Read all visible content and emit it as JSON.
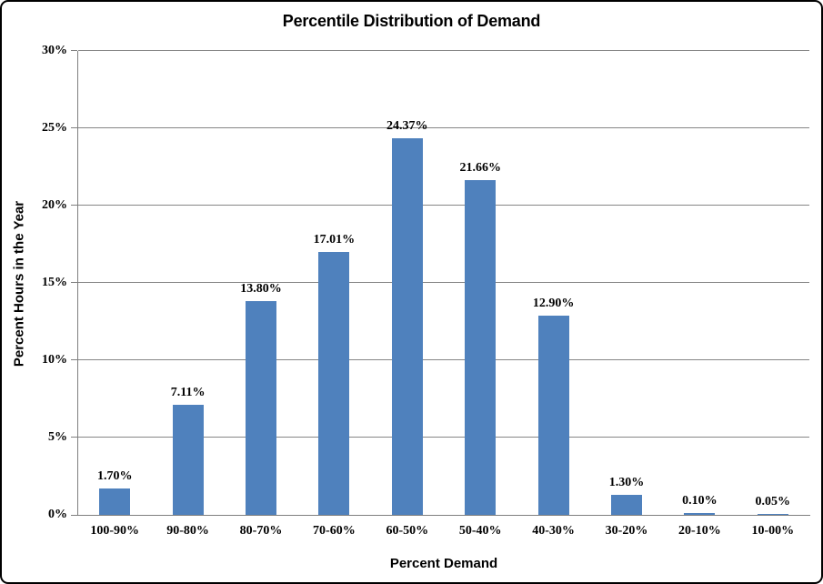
{
  "chart_data": {
    "type": "bar",
    "title": "Percentile Distribution of Demand",
    "xlabel": "Percent Demand",
    "ylabel": "Percent Hours in the Year",
    "categories": [
      "100-90%",
      "90-80%",
      "80-70%",
      "70-60%",
      "60-50%",
      "50-40%",
      "40-30%",
      "30-20%",
      "20-10%",
      "10-00%"
    ],
    "values": [
      1.7,
      7.11,
      13.8,
      17.01,
      24.37,
      21.66,
      12.9,
      1.3,
      0.1,
      0.05
    ],
    "data_labels": [
      "1.70%",
      "7.11%",
      "13.80%",
      "17.01%",
      "24.37%",
      "21.66%",
      "12.90%",
      "1.30%",
      "0.10%",
      "0.05%"
    ],
    "y_ticks": [
      "0%",
      "5%",
      "10%",
      "15%",
      "20%",
      "25%",
      "30%"
    ],
    "ylim": [
      0,
      30
    ],
    "grid": true,
    "legend": "none",
    "colors": {
      "bar": "#4F81BD",
      "gridline": "#868686",
      "axis": "#7F7F7F",
      "text": "#000000",
      "border": "#000000",
      "background": "#FFFFFF"
    }
  }
}
